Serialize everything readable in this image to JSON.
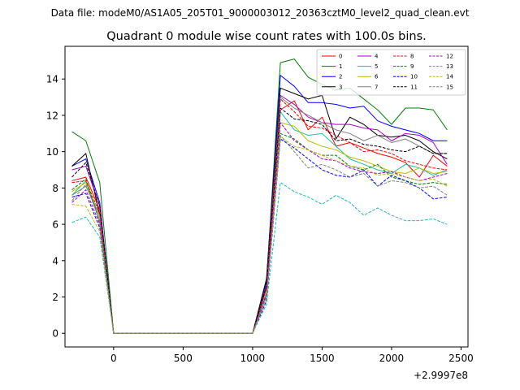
{
  "figure": {
    "data_file_label": "Data file: modeM0/AS1A05_205T01_9000003012_20363cztM0_level2_quad_clean.evt"
  },
  "chart_data": {
    "type": "line",
    "title": "Quadrant 0 module wise count rates with 100.0s bins.",
    "xlabel": "",
    "ylabel": "",
    "x_offset_label": "+2.9997e8",
    "xlim": [
      -350,
      2550
    ],
    "ylim": [
      -0.75,
      15.8
    ],
    "x_ticks": [
      0,
      500,
      1000,
      1500,
      2000,
      2500
    ],
    "x_tick_labels": [
      "0",
      "500",
      "1000",
      "1500",
      "2000",
      "2500"
    ],
    "y_ticks": [
      0,
      2,
      4,
      6,
      8,
      10,
      12,
      14
    ],
    "y_tick_labels": [
      "0",
      "2",
      "4",
      "6",
      "8",
      "10",
      "12",
      "14"
    ],
    "grid": false,
    "legend_position": "top-right",
    "x": [
      -300,
      -200,
      -100,
      0,
      100,
      200,
      300,
      400,
      500,
      600,
      700,
      800,
      900,
      1000,
      1100,
      1200,
      1300,
      1400,
      1500,
      1600,
      1700,
      1800,
      1900,
      2000,
      2100,
      2200,
      2300,
      2400
    ],
    "series": [
      {
        "name": "0",
        "color": "#ff0000",
        "dash": "solid",
        "values": [
          8.4,
          8.6,
          6.8,
          0,
          0,
          0,
          0,
          0,
          0,
          0,
          0,
          0,
          0,
          0,
          2.6,
          12.3,
          12.8,
          11.2,
          11.9,
          10.3,
          10.5,
          10.2,
          9.9,
          9.7,
          9.4,
          8.6,
          9.8,
          9.2
        ]
      },
      {
        "name": "1",
        "color": "#008000",
        "dash": "solid",
        "values": [
          11.1,
          10.6,
          8.3,
          0,
          0,
          0,
          0,
          0,
          0,
          0,
          0,
          0,
          0,
          0,
          2.8,
          14.9,
          15.1,
          14.1,
          13.7,
          13.4,
          13.5,
          12.9,
          12.3,
          11.5,
          12.4,
          12.4,
          12.3,
          11.2
        ]
      },
      {
        "name": "2",
        "color": "#0000ff",
        "dash": "solid",
        "values": [
          9.2,
          9.6,
          7.2,
          0,
          0,
          0,
          0,
          0,
          0,
          0,
          0,
          0,
          0,
          0,
          2.9,
          14.2,
          13.6,
          12.7,
          12.7,
          12.6,
          12.4,
          12.5,
          11.7,
          11.4,
          11.2,
          11.0,
          10.6,
          10.6
        ]
      },
      {
        "name": "3",
        "color": "#000000",
        "dash": "solid",
        "values": [
          9.2,
          9.9,
          6.5,
          0,
          0,
          0,
          0,
          0,
          0,
          0,
          0,
          0,
          0,
          0,
          3.0,
          13.5,
          13.2,
          12.9,
          13.1,
          10.7,
          11.9,
          11.5,
          10.9,
          10.8,
          10.9,
          10.6,
          10.0,
          9.6
        ]
      },
      {
        "name": "4",
        "color": "#aa00cc",
        "dash": "solid",
        "values": [
          9.0,
          9.2,
          7.0,
          0,
          0,
          0,
          0,
          0,
          0,
          0,
          0,
          0,
          0,
          0,
          2.7,
          13.1,
          12.6,
          11.9,
          11.6,
          11.5,
          11.5,
          11.3,
          11.2,
          10.6,
          11.0,
          10.9,
          10.5,
          9.3
        ]
      },
      {
        "name": "5",
        "color": "#1abc9c",
        "dash": "solid",
        "values": [
          7.6,
          8.4,
          6.2,
          0,
          0,
          0,
          0,
          0,
          0,
          0,
          0,
          0,
          0,
          0,
          2.2,
          12.2,
          11.2,
          10.9,
          11.0,
          10.3,
          9.6,
          9.3,
          9.0,
          8.8,
          9.3,
          9.1,
          8.7,
          9.0
        ]
      },
      {
        "name": "6",
        "color": "#bcbc00",
        "dash": "solid",
        "values": [
          7.8,
          8.3,
          6.4,
          0,
          0,
          0,
          0,
          0,
          0,
          0,
          0,
          0,
          0,
          0,
          2.4,
          11.6,
          11.4,
          10.6,
          10.3,
          10.1,
          9.7,
          9.5,
          9.2,
          8.9,
          8.8,
          9.1,
          8.8,
          8.9
        ]
      },
      {
        "name": "7",
        "color": "#808080",
        "dash": "solid",
        "values": [
          7.6,
          8.1,
          6.5,
          0,
          0,
          0,
          0,
          0,
          0,
          0,
          0,
          0,
          0,
          0,
          2.5,
          13.0,
          12.4,
          12.0,
          11.6,
          11.2,
          11.0,
          10.6,
          10.9,
          10.5,
          10.7,
          10.3,
          9.9,
          9.9
        ]
      },
      {
        "name": "8",
        "color": "#ff0000",
        "dash": "dashed",
        "values": [
          8.3,
          8.4,
          6.6,
          0,
          0,
          0,
          0,
          0,
          0,
          0,
          0,
          0,
          0,
          0,
          2.5,
          12.9,
          12.2,
          11.4,
          11.3,
          10.9,
          10.5,
          10.0,
          10.1,
          9.9,
          9.5,
          9.3,
          9.1,
          9.0
        ]
      },
      {
        "name": "9",
        "color": "#008000",
        "dash": "dashed",
        "values": [
          7.9,
          8.5,
          6.1,
          0,
          0,
          0,
          0,
          0,
          0,
          0,
          0,
          0,
          0,
          0,
          2.1,
          11.0,
          10.7,
          10.1,
          9.8,
          9.8,
          9.2,
          9.0,
          9.3,
          8.6,
          8.4,
          8.2,
          8.3,
          8.2
        ]
      },
      {
        "name": "10",
        "color": "#0000ff",
        "dash": "dashed",
        "values": [
          7.5,
          7.7,
          5.8,
          0,
          0,
          0,
          0,
          0,
          0,
          0,
          0,
          0,
          0,
          0,
          1.8,
          10.7,
          10.2,
          9.6,
          9.0,
          8.7,
          8.6,
          9.0,
          8.1,
          8.7,
          8.4,
          8.0,
          7.4,
          7.5
        ]
      },
      {
        "name": "11",
        "color": "#000000",
        "dash": "dashed",
        "values": [
          8.6,
          9.4,
          7.0,
          0,
          0,
          0,
          0,
          0,
          0,
          0,
          0,
          0,
          0,
          0,
          2.6,
          12.4,
          11.8,
          11.7,
          11.5,
          10.6,
          10.7,
          10.4,
          10.3,
          10.1,
          10.0,
          10.3,
          9.9,
          9.9
        ]
      },
      {
        "name": "12",
        "color": "#aa00cc",
        "dash": "dashed",
        "values": [
          7.2,
          7.9,
          6.0,
          0,
          0,
          0,
          0,
          0,
          0,
          0,
          0,
          0,
          0,
          0,
          2.2,
          11.6,
          10.6,
          10.1,
          9.6,
          9.5,
          9.1,
          8.9,
          8.8,
          8.9,
          8.6,
          8.4,
          8.6,
          8.8
        ]
      },
      {
        "name": "13",
        "color": "#1abcbc",
        "dash": "dashed",
        "values": [
          6.1,
          6.4,
          5.3,
          0,
          0,
          0,
          0,
          0,
          0,
          0,
          0,
          0,
          0,
          0,
          1.6,
          8.3,
          7.8,
          7.5,
          7.1,
          7.6,
          7.2,
          6.5,
          6.9,
          6.5,
          6.2,
          6.2,
          6.3,
          6.0
        ]
      },
      {
        "name": "14",
        "color": "#bcbc00",
        "dash": "dashed",
        "values": [
          7.1,
          7.0,
          5.6,
          0,
          0,
          0,
          0,
          0,
          0,
          0,
          0,
          0,
          0,
          0,
          2.0,
          10.8,
          10.3,
          10.1,
          9.8,
          9.5,
          9.2,
          9.1,
          8.7,
          8.8,
          8.6,
          8.4,
          8.5,
          8.1
        ]
      },
      {
        "name": "15",
        "color": "#808080",
        "dash": "dashed",
        "values": [
          7.3,
          8.2,
          6.2,
          0,
          0,
          0,
          0,
          0,
          0,
          0,
          0,
          0,
          0,
          0,
          2.0,
          10.9,
          10.0,
          9.1,
          9.3,
          9.0,
          8.6,
          8.8,
          8.1,
          8.4,
          8.3,
          8.0,
          8.1,
          7.6
        ]
      }
    ]
  }
}
